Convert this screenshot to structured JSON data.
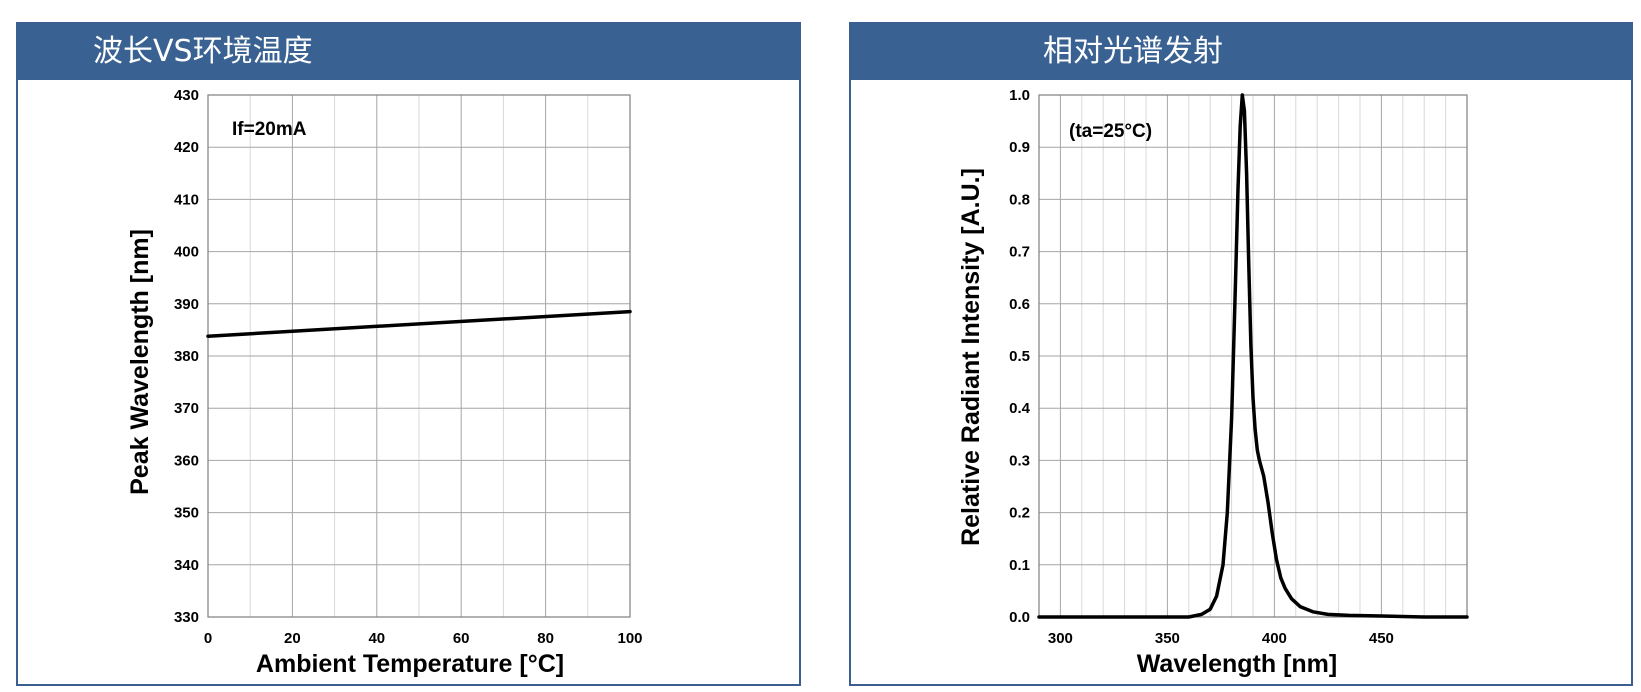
{
  "panels": [
    {
      "header": "波长VS环境温度"
    },
    {
      "header": "相对光谱发射"
    }
  ],
  "chart_data": [
    {
      "type": "line",
      "title": "",
      "annotation": "If=20mA",
      "xlabel": "Ambient Temperature [°C]",
      "ylabel": "Peak Wavelength [nm]",
      "xlim": [
        0,
        100
      ],
      "ylim": [
        330,
        430
      ],
      "xticks": [
        0,
        20,
        40,
        60,
        80,
        100
      ],
      "yticks": [
        330,
        340,
        350,
        360,
        370,
        380,
        390,
        400,
        410,
        420,
        430
      ],
      "grid": true,
      "series": [
        {
          "x": [
            0,
            100
          ],
          "values": [
            383.8,
            388.5
          ]
        }
      ]
    },
    {
      "type": "line",
      "title": "",
      "annotation": "(ta=25°C)",
      "xlabel": "Wavelength [nm]",
      "ylabel": "Relative Radiant Intensity [A.U.]",
      "xlim": [
        290,
        490
      ],
      "ylim": [
        0,
        1.0
      ],
      "xticks": [
        300,
        350,
        400,
        450
      ],
      "yticks": [
        0.0,
        0.1,
        0.2,
        0.3,
        0.4,
        0.5,
        0.6,
        0.7,
        0.8,
        0.9,
        1.0
      ],
      "grid": true,
      "series": [
        {
          "x": [
            290,
            360,
            366,
            370,
            373,
            376,
            378,
            380,
            381,
            382,
            383,
            384,
            385,
            386,
            387,
            388,
            389,
            390,
            391,
            392,
            393,
            395,
            397,
            399,
            401,
            403,
            405,
            408,
            412,
            418,
            425,
            435,
            450,
            470,
            490
          ],
          "values": [
            0.0,
            0.0,
            0.005,
            0.015,
            0.04,
            0.1,
            0.2,
            0.38,
            0.52,
            0.67,
            0.82,
            0.94,
            1.0,
            0.97,
            0.85,
            0.68,
            0.52,
            0.42,
            0.36,
            0.32,
            0.3,
            0.27,
            0.22,
            0.16,
            0.11,
            0.075,
            0.055,
            0.035,
            0.02,
            0.01,
            0.005,
            0.003,
            0.002,
            0.0,
            0.0
          ]
        }
      ]
    }
  ]
}
